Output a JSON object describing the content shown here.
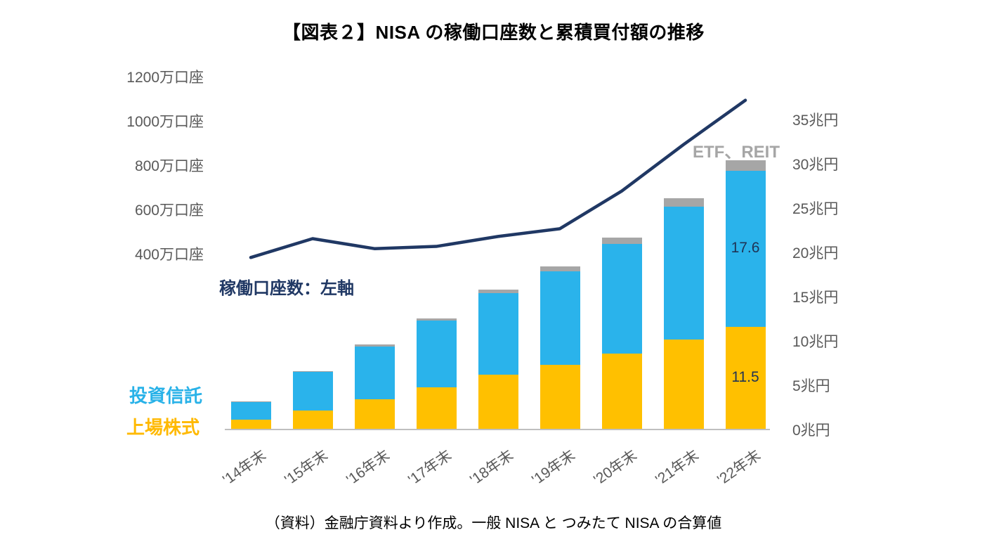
{
  "title": "【図表２】NISA の稼働口座数と累積買付額の推移",
  "footer": "（資料）金融庁資料より作成。一般 NISA と つみたて NISA の合算値",
  "annotations": {
    "etf_reit_label": "ETF、REIT",
    "line_label": "稼働口座数：左軸",
    "fund_label": "投資信託",
    "stock_label": "上場株式"
  },
  "chart_data": {
    "type": "bar",
    "subtype": "stacked-bar-with-line",
    "title": "【図表２】NISA の稼働口座数と累積買付額の推移",
    "categories": [
      "'14年末",
      "'15年末",
      "'16年末",
      "'17年末",
      "'18年末",
      "'19年末",
      "'20年末",
      "'21年末",
      "'22年末"
    ],
    "bar_series": [
      {
        "name": "上場株式",
        "axis": "right",
        "unit": "兆円",
        "color": "#FFC000",
        "values": [
          1.0,
          2.1,
          3.3,
          4.7,
          6.1,
          7.2,
          8.5,
          10.1,
          11.5
        ]
      },
      {
        "name": "投資信託",
        "axis": "right",
        "unit": "兆円",
        "color": "#2AB3EB",
        "values": [
          2.0,
          4.3,
          6.0,
          7.5,
          9.2,
          10.6,
          12.4,
          15.0,
          17.6
        ]
      },
      {
        "name": "ETF、REIT",
        "axis": "right",
        "unit": "兆円",
        "color": "#A6A6A6",
        "values": [
          0.1,
          0.1,
          0.2,
          0.3,
          0.4,
          0.5,
          0.7,
          0.9,
          1.2
        ]
      }
    ],
    "line_series": {
      "name": "稼働口座数",
      "label": "稼働口座数：左軸",
      "axis": "left",
      "unit": "万口座",
      "color": "#203864",
      "values": [
        380,
        465,
        420,
        430,
        475,
        510,
        680,
        890,
        1090
      ]
    },
    "left_axis": {
      "unit": "万口座",
      "ticks": [
        {
          "value": 400,
          "label": "400万口座"
        },
        {
          "value": 600,
          "label": "600万口座"
        },
        {
          "value": 800,
          "label": "800万口座"
        },
        {
          "value": 1000,
          "label": "1000万口座"
        },
        {
          "value": 1200,
          "label": "1200万口座"
        }
      ]
    },
    "right_axis": {
      "unit": "兆円",
      "min": 0,
      "max": 35,
      "ticks": [
        {
          "value": 0,
          "label": "0兆円"
        },
        {
          "value": 5,
          "label": "5兆円"
        },
        {
          "value": 10,
          "label": "10兆円"
        },
        {
          "value": 15,
          "label": "15兆円"
        },
        {
          "value": 20,
          "label": "20兆円"
        },
        {
          "value": 25,
          "label": "25兆円"
        },
        {
          "value": 30,
          "label": "30兆円"
        },
        {
          "value": 35,
          "label": "35兆円"
        }
      ]
    },
    "data_labels": [
      {
        "series": 1,
        "index": 8,
        "text": "17.6"
      },
      {
        "series": 0,
        "index": 8,
        "text": "11.5"
      }
    ],
    "grid": false,
    "legend_position": "none"
  }
}
